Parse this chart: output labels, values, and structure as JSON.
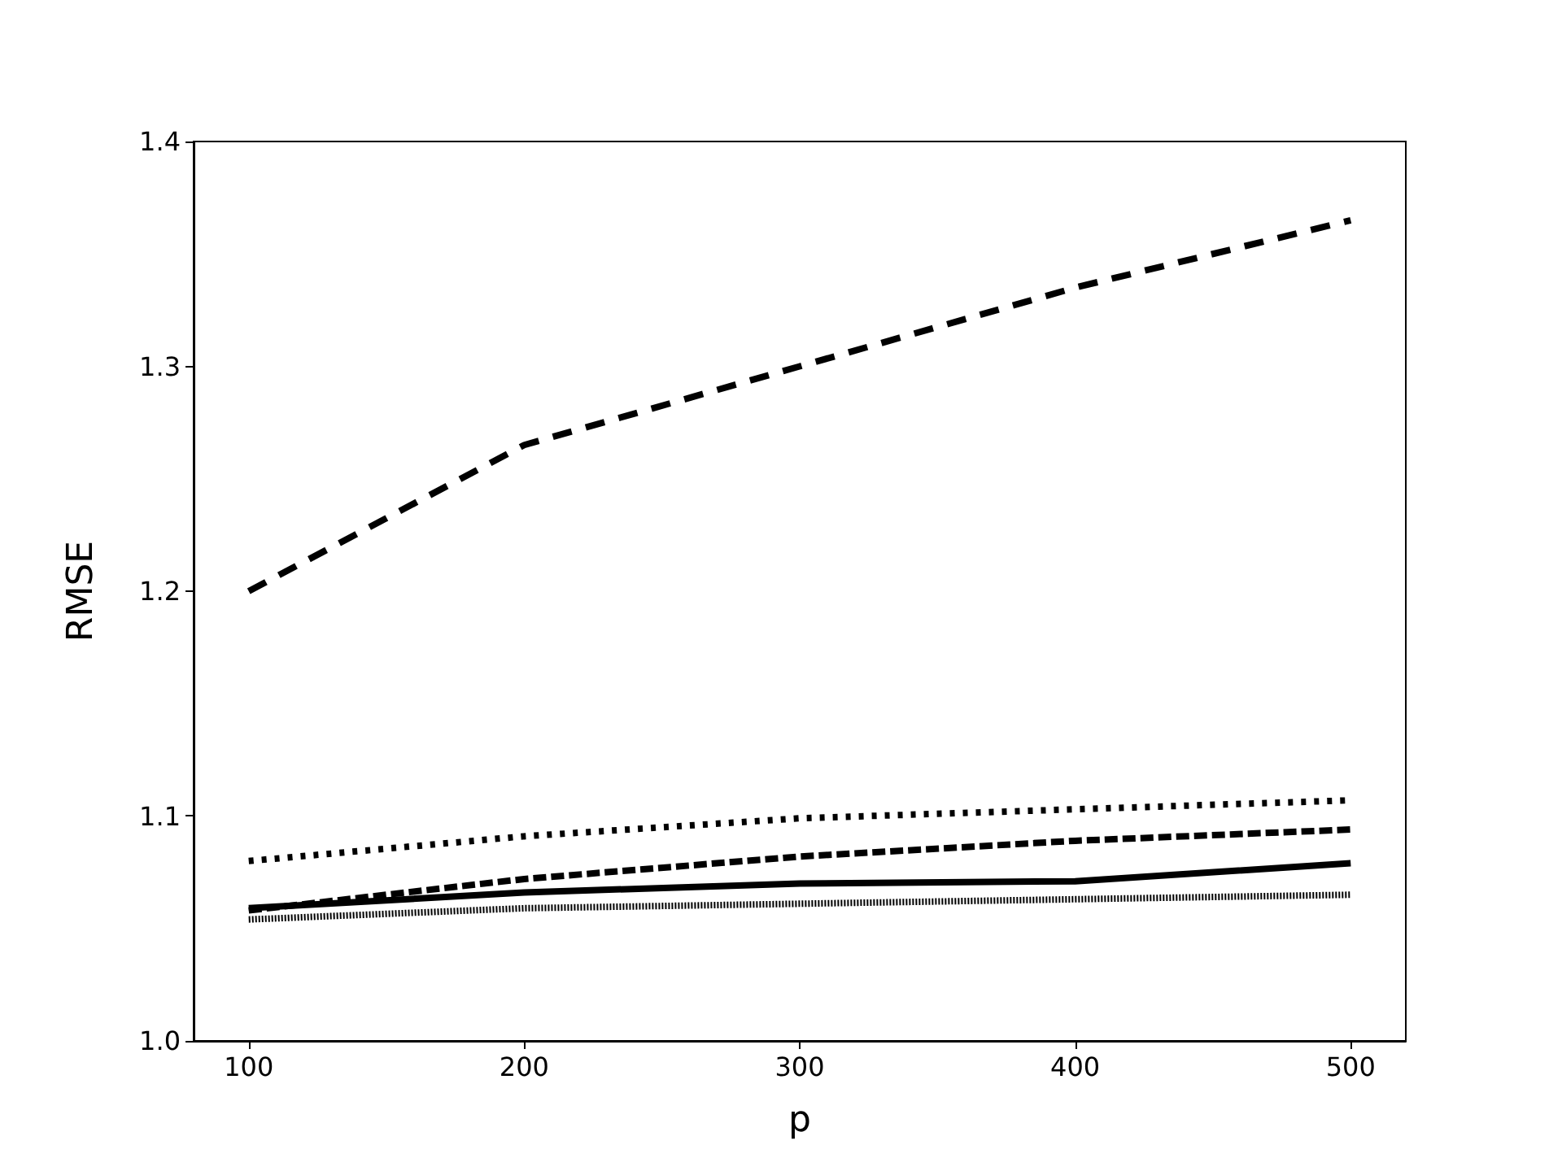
{
  "chart_data": {
    "type": "line",
    "xlabel": "p",
    "ylabel": "RMSE",
    "x": [
      100,
      200,
      300,
      400,
      500
    ],
    "xlim": [
      80,
      520
    ],
    "xticks": [
      100,
      200,
      300,
      400,
      500
    ],
    "ylim": [
      1.0,
      1.4
    ],
    "yticks": [
      {
        "value": 1.0,
        "label": "1.0"
      },
      1.1,
      1.2,
      1.3,
      1.4
    ],
    "grid": false,
    "marker": "none",
    "series": [
      {
        "color": "#000000",
        "line_style": "dashed",
        "values": [
          1.2,
          1.265,
          1.3,
          1.335,
          1.365
        ]
      },
      {
        "color": "#000000",
        "line_style": "dotted",
        "values": [
          1.08,
          1.091,
          1.099,
          1.103,
          1.107
        ]
      },
      {
        "color": "#000000",
        "line_style": "dashed",
        "values": [
          1.058,
          1.072,
          1.082,
          1.089,
          1.094
        ]
      },
      {
        "color": "#000000",
        "line_style": "solid",
        "values": [
          1.059,
          1.066,
          1.07,
          1.071,
          1.079
        ]
      },
      {
        "color": "#000000",
        "line_style": "dotted",
        "values": [
          1.054,
          1.059,
          1.061,
          1.063,
          1.065
        ]
      }
    ]
  }
}
